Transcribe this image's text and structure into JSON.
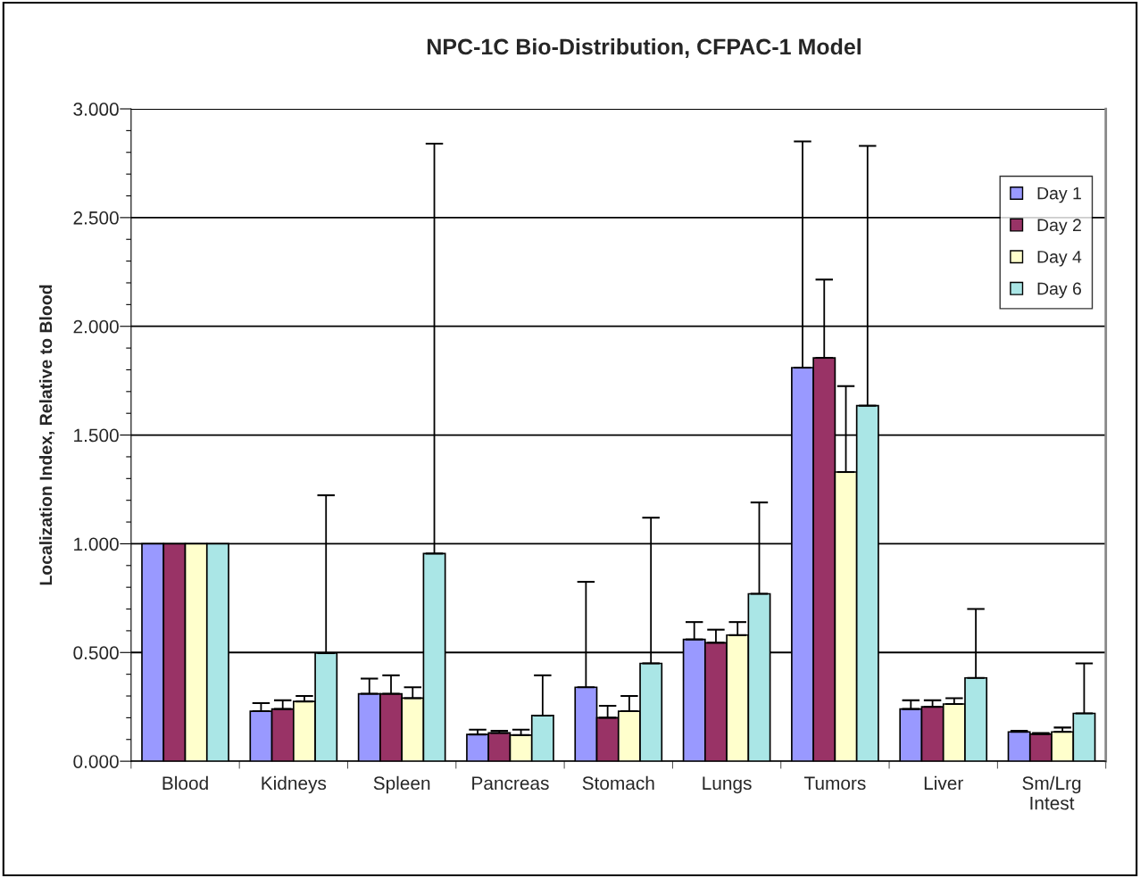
{
  "chart_data": {
    "type": "bar",
    "title": "NPC-1C Bio-Distribution, CFPAC-1 Model",
    "ylabel": "Localization Index, Relative to Blood",
    "categories": [
      "Blood",
      "Kidneys",
      "Spleen",
      "Pancreas",
      "Stomach",
      "Lungs",
      "Tumors",
      "Liver",
      "Sm/Lrg\nIntest"
    ],
    "series": [
      {
        "name": "Day 1",
        "color": "#9999ff",
        "values": [
          1.0,
          0.23,
          0.31,
          0.123,
          0.34,
          0.56,
          1.81,
          0.24,
          0.135
        ],
        "errors": [
          null,
          [
            0.23,
            0.267
          ],
          [
            0.31,
            0.38
          ],
          [
            0.123,
            0.145
          ],
          [
            0.34,
            0.825
          ],
          [
            0.56,
            0.64
          ],
          [
            1.81,
            2.85
          ],
          [
            0.24,
            0.28
          ],
          [
            0.135,
            0.14
          ]
        ]
      },
      {
        "name": "Day 2",
        "color": "#993366",
        "values": [
          1.0,
          0.24,
          0.31,
          0.13,
          0.2,
          0.545,
          1.855,
          0.25,
          0.125
        ],
        "errors": [
          null,
          [
            0.24,
            0.28
          ],
          [
            0.31,
            0.395
          ],
          [
            0.13,
            0.14
          ],
          [
            0.2,
            0.255
          ],
          [
            0.545,
            0.605
          ],
          [
            1.855,
            2.215
          ],
          [
            0.25,
            0.28
          ],
          [
            0.125,
            0.13
          ]
        ]
      },
      {
        "name": "Day 4",
        "color": "#ffffcc",
        "values": [
          1.0,
          0.275,
          0.29,
          0.12,
          0.23,
          0.58,
          1.33,
          0.263,
          0.135
        ],
        "errors": [
          null,
          [
            0.275,
            0.3
          ],
          [
            0.29,
            0.34
          ],
          [
            0.12,
            0.145
          ],
          [
            0.23,
            0.3
          ],
          [
            0.58,
            0.64
          ],
          [
            1.33,
            1.725
          ],
          [
            0.263,
            0.29
          ],
          [
            0.135,
            0.155
          ]
        ]
      },
      {
        "name": "Day 6",
        "color": "#aae6e6",
        "values": [
          1.0,
          0.497,
          0.955,
          0.21,
          0.45,
          0.77,
          1.635,
          0.383,
          0.22
        ],
        "errors": [
          null,
          [
            0.497,
            1.223
          ],
          [
            0.955,
            2.84
          ],
          [
            0.21,
            0.395
          ],
          [
            0.45,
            1.12
          ],
          [
            0.77,
            1.19
          ],
          [
            1.635,
            2.83
          ],
          [
            0.383,
            0.7
          ],
          [
            0.22,
            0.45
          ]
        ]
      }
    ],
    "ylim": [
      0,
      3
    ],
    "yticks": [
      {
        "value": 0,
        "label": "0.000"
      },
      {
        "value": 0.1,
        "label": null
      },
      {
        "value": 0.2,
        "label": null
      },
      {
        "value": 0.3,
        "label": null
      },
      {
        "value": 0.4,
        "label": null
      },
      {
        "value": 0.5,
        "label": "0.500"
      },
      {
        "value": 0.6,
        "label": null
      },
      {
        "value": 0.7,
        "label": null
      },
      {
        "value": 0.8,
        "label": null
      },
      {
        "value": 0.9,
        "label": null
      },
      {
        "value": 1.0,
        "label": "1.000"
      },
      {
        "value": 1.1,
        "label": null
      },
      {
        "value": 1.2,
        "label": null
      },
      {
        "value": 1.3,
        "label": null
      },
      {
        "value": 1.4,
        "label": null
      },
      {
        "value": 1.5,
        "label": "1.500"
      },
      {
        "value": 1.6,
        "label": null
      },
      {
        "value": 1.7,
        "label": null
      },
      {
        "value": 1.8,
        "label": null
      },
      {
        "value": 1.9,
        "label": null
      },
      {
        "value": 2.0,
        "label": "2.000"
      },
      {
        "value": 2.1,
        "label": null
      },
      {
        "value": 2.2,
        "label": null
      },
      {
        "value": 2.3,
        "label": null
      },
      {
        "value": 2.4,
        "label": null
      },
      {
        "value": 2.5,
        "label": "2.500"
      },
      {
        "value": 2.6,
        "label": null
      },
      {
        "value": 2.7,
        "label": null
      },
      {
        "value": 2.8,
        "label": null
      },
      {
        "value": 2.9,
        "label": null
      },
      {
        "value": 3.0,
        "label": "3.000"
      }
    ],
    "grid": "y",
    "legend": "top right"
  }
}
